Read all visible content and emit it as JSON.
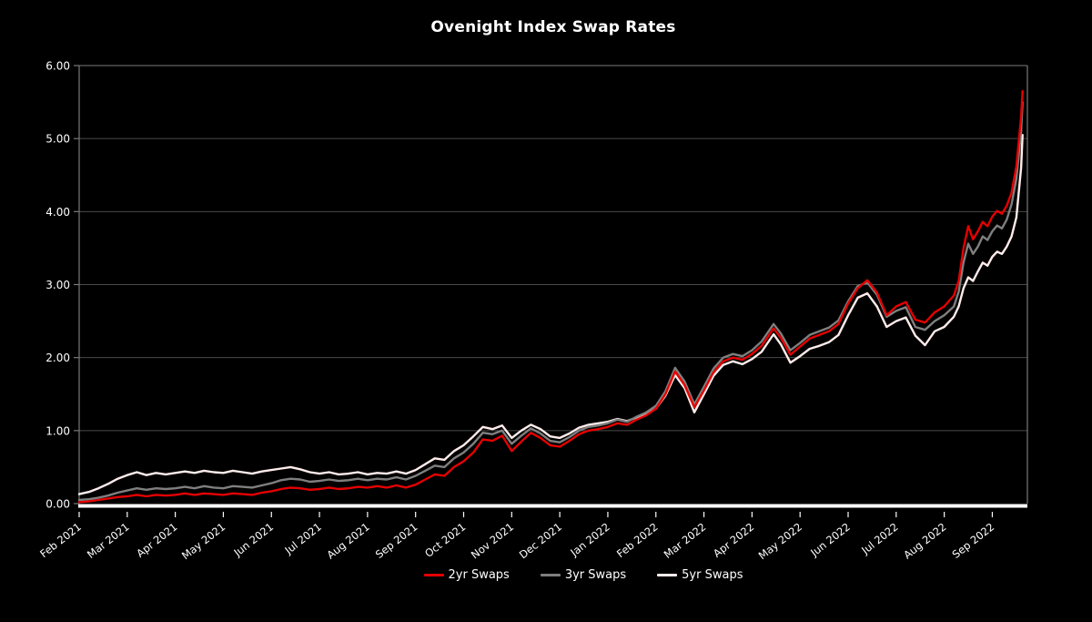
{
  "title": "Ovenight Index Swap Rates",
  "colors": {
    "background": "#000000",
    "grid": "#4a4a4a",
    "spine": "#7a7a7a",
    "axis": "#ffffff",
    "text": "#ffffff"
  },
  "chart_data": {
    "type": "line",
    "title": "Ovenight Index Swap Rates",
    "xlabel": "",
    "ylabel": "",
    "grid": true,
    "legend_position": "bottom-center",
    "ylim": [
      0,
      6
    ],
    "ytick_values": [
      0,
      1,
      2,
      3,
      4,
      5,
      6
    ],
    "yticks": [
      "0.00",
      "1.00",
      "2.00",
      "3.00",
      "4.00",
      "5.00",
      "6.00"
    ],
    "x_domain": [
      0,
      19.73
    ],
    "x_unit": "months since Feb 2021",
    "xtick_positions": [
      0,
      1,
      2,
      3,
      4,
      5,
      6,
      7,
      8,
      9,
      10,
      11,
      12,
      13,
      14,
      15,
      16,
      17,
      18,
      19
    ],
    "xtick_labels": [
      "Feb 2021",
      "Mar 2021",
      "Apr 2021",
      "May 2021",
      "Jun 2021",
      "Jul 2021",
      "Aug 2021",
      "Sep 2021",
      "Oct 2021",
      "Nov 2021",
      "Dec 2021",
      "Jan 2022",
      "Feb 2022",
      "Mar 2022",
      "Apr 2022",
      "May 2022",
      "Jun 2022",
      "Jul 2022",
      "Aug 2022",
      "Sep 2022"
    ],
    "x": [
      0,
      0.2,
      0.4,
      0.6,
      0.8,
      1,
      1.2,
      1.4,
      1.6,
      1.8,
      2,
      2.2,
      2.4,
      2.6,
      2.8,
      3,
      3.2,
      3.4,
      3.6,
      3.8,
      4,
      4.2,
      4.4,
      4.6,
      4.8,
      5,
      5.2,
      5.4,
      5.6,
      5.8,
      6,
      6.2,
      6.4,
      6.6,
      6.8,
      7,
      7.2,
      7.4,
      7.6,
      7.8,
      8,
      8.2,
      8.4,
      8.6,
      8.8,
      9,
      9.2,
      9.4,
      9.6,
      9.8,
      10,
      10.2,
      10.4,
      10.6,
      10.8,
      11,
      11.2,
      11.4,
      11.6,
      11.8,
      12,
      12.2,
      12.4,
      12.6,
      12.8,
      13,
      13.2,
      13.4,
      13.6,
      13.8,
      14,
      14.2,
      14.45,
      14.6,
      14.8,
      15,
      15.2,
      15.4,
      15.6,
      15.8,
      16,
      16.2,
      16.4,
      16.6,
      16.8,
      17,
      17.2,
      17.4,
      17.6,
      17.8,
      18,
      18.2,
      18.3,
      18.4,
      18.5,
      18.6,
      18.7,
      18.8,
      18.9,
      19,
      19.1,
      19.2,
      19.3,
      19.4,
      19.5,
      19.6,
      19.63
    ],
    "series": [
      {
        "name": "2yr Swaps",
        "color": "#e60000",
        "values": [
          0.02,
          0.03,
          0.05,
          0.07,
          0.09,
          0.1,
          0.12,
          0.1,
          0.12,
          0.11,
          0.12,
          0.14,
          0.12,
          0.14,
          0.13,
          0.12,
          0.14,
          0.13,
          0.12,
          0.15,
          0.17,
          0.2,
          0.22,
          0.21,
          0.19,
          0.2,
          0.22,
          0.2,
          0.21,
          0.23,
          0.22,
          0.24,
          0.22,
          0.25,
          0.22,
          0.26,
          0.33,
          0.4,
          0.38,
          0.5,
          0.58,
          0.7,
          0.88,
          0.86,
          0.93,
          0.72,
          0.85,
          0.97,
          0.9,
          0.8,
          0.78,
          0.86,
          0.95,
          1.0,
          1.02,
          1.05,
          1.1,
          1.08,
          1.15,
          1.21,
          1.3,
          1.5,
          1.81,
          1.62,
          1.32,
          1.55,
          1.8,
          1.95,
          2.0,
          1.97,
          2.05,
          2.16,
          2.4,
          2.27,
          2.04,
          2.15,
          2.26,
          2.31,
          2.36,
          2.46,
          2.74,
          2.95,
          3.06,
          2.89,
          2.58,
          2.7,
          2.76,
          2.52,
          2.48,
          2.62,
          2.7,
          2.85,
          3.05,
          3.5,
          3.8,
          3.62,
          3.73,
          3.86,
          3.8,
          3.93,
          4.01,
          3.97,
          4.08,
          4.26,
          4.62,
          5.3,
          5.65
        ]
      },
      {
        "name": "3yr Swaps",
        "color": "#7f7f7f",
        "values": [
          0.05,
          0.06,
          0.08,
          0.11,
          0.15,
          0.18,
          0.21,
          0.19,
          0.21,
          0.2,
          0.21,
          0.23,
          0.21,
          0.24,
          0.22,
          0.21,
          0.24,
          0.23,
          0.22,
          0.25,
          0.28,
          0.32,
          0.34,
          0.33,
          0.3,
          0.31,
          0.33,
          0.31,
          0.32,
          0.34,
          0.32,
          0.34,
          0.33,
          0.36,
          0.33,
          0.38,
          0.45,
          0.52,
          0.5,
          0.62,
          0.7,
          0.82,
          0.97,
          0.95,
          1.0,
          0.82,
          0.93,
          1.03,
          0.96,
          0.86,
          0.84,
          0.91,
          1.0,
          1.05,
          1.07,
          1.1,
          1.15,
          1.12,
          1.19,
          1.25,
          1.34,
          1.54,
          1.86,
          1.67,
          1.36,
          1.6,
          1.85,
          2.0,
          2.05,
          2.02,
          2.1,
          2.22,
          2.46,
          2.33,
          2.1,
          2.2,
          2.31,
          2.36,
          2.41,
          2.51,
          2.77,
          2.98,
          3.03,
          2.86,
          2.56,
          2.64,
          2.69,
          2.42,
          2.38,
          2.5,
          2.58,
          2.7,
          2.9,
          3.3,
          3.56,
          3.42,
          3.52,
          3.66,
          3.61,
          3.73,
          3.81,
          3.77,
          3.89,
          4.1,
          4.45,
          5.1,
          5.5
        ]
      },
      {
        "name": "5yr Swaps",
        "color": "#ffeceb",
        "values": [
          0.13,
          0.16,
          0.21,
          0.27,
          0.34,
          0.39,
          0.43,
          0.39,
          0.42,
          0.4,
          0.42,
          0.44,
          0.42,
          0.45,
          0.43,
          0.42,
          0.45,
          0.43,
          0.41,
          0.44,
          0.46,
          0.48,
          0.5,
          0.47,
          0.43,
          0.41,
          0.43,
          0.4,
          0.41,
          0.43,
          0.4,
          0.42,
          0.41,
          0.44,
          0.41,
          0.46,
          0.54,
          0.62,
          0.6,
          0.72,
          0.8,
          0.92,
          1.05,
          1.02,
          1.07,
          0.9,
          1.0,
          1.08,
          1.02,
          0.92,
          0.9,
          0.96,
          1.04,
          1.08,
          1.1,
          1.12,
          1.16,
          1.13,
          1.18,
          1.23,
          1.3,
          1.48,
          1.76,
          1.58,
          1.25,
          1.5,
          1.75,
          1.9,
          1.95,
          1.91,
          1.98,
          2.08,
          2.32,
          2.18,
          1.93,
          2.02,
          2.12,
          2.16,
          2.21,
          2.31,
          2.58,
          2.82,
          2.88,
          2.7,
          2.42,
          2.5,
          2.55,
          2.3,
          2.17,
          2.36,
          2.42,
          2.56,
          2.7,
          2.95,
          3.1,
          3.05,
          3.18,
          3.3,
          3.26,
          3.38,
          3.45,
          3.42,
          3.52,
          3.66,
          3.92,
          4.6,
          5.05
        ]
      }
    ]
  }
}
